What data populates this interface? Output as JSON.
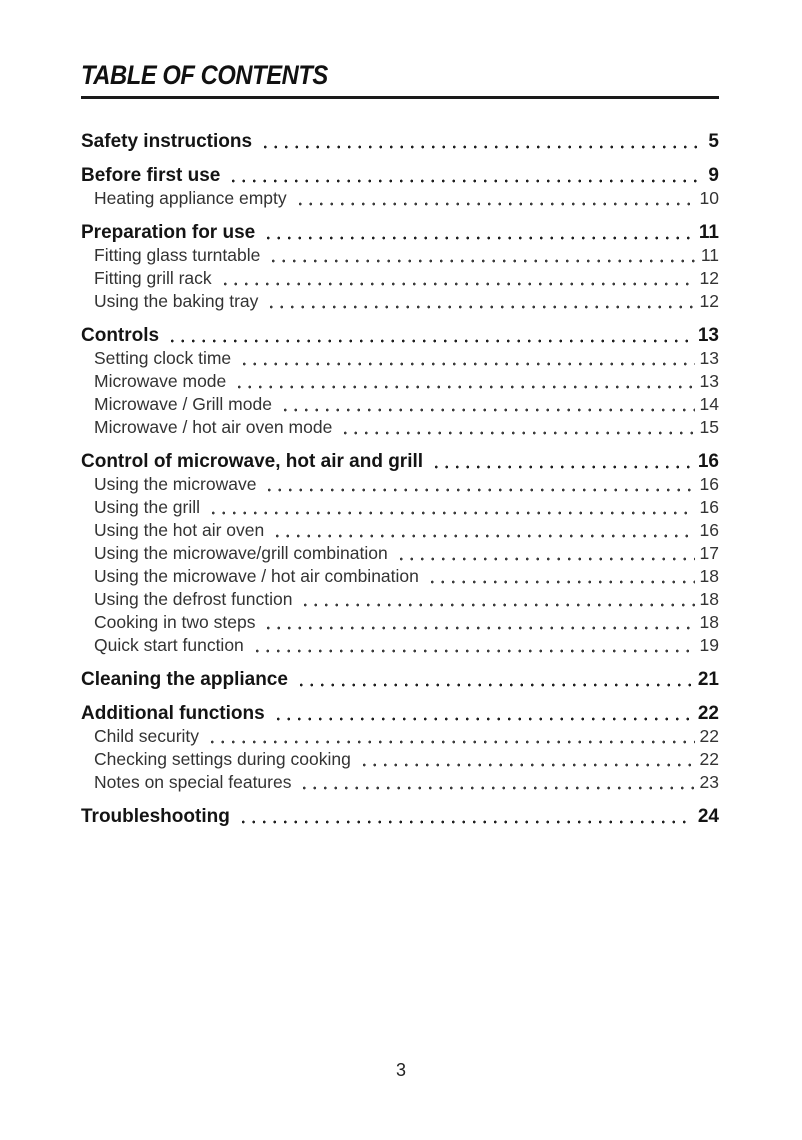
{
  "page": {
    "title": "TABLE OF CONTENTS",
    "footer_page_number": "3"
  },
  "sections": [
    {
      "title": "Safety instructions",
      "page": "5",
      "items": []
    },
    {
      "title": "Before first use",
      "page": "9",
      "items": [
        {
          "label": "Heating appliance empty",
          "page": "10"
        }
      ]
    },
    {
      "title": "Preparation for use",
      "page": "11",
      "items": [
        {
          "label": "Fitting glass turntable",
          "page": "11"
        },
        {
          "label": "Fitting grill rack",
          "page": "12"
        },
        {
          "label": "Using the baking tray",
          "page": "12"
        }
      ]
    },
    {
      "title": "Controls",
      "page": "13",
      "items": [
        {
          "label": "Setting clock time",
          "page": "13"
        },
        {
          "label": "Microwave mode",
          "page": "13"
        },
        {
          "label": "Microwave / Grill mode",
          "page": "14"
        },
        {
          "label": "Microwave / hot air oven mode",
          "page": "15"
        }
      ]
    },
    {
      "title": "Control of microwave, hot air and grill",
      "page": "16",
      "items": [
        {
          "label": "Using the microwave",
          "page": "16"
        },
        {
          "label": "Using the grill",
          "page": "16"
        },
        {
          "label": "Using the hot air oven",
          "page": "16"
        },
        {
          "label": "Using the microwave/grill combination",
          "page": "17"
        },
        {
          "label": "Using the microwave / hot air combination",
          "page": "18"
        },
        {
          "label": "Using the defrost function",
          "page": "18"
        },
        {
          "label": "Cooking in two steps",
          "page": "18"
        },
        {
          "label": "Quick start function",
          "page": "19"
        }
      ]
    },
    {
      "title": "Cleaning the appliance",
      "page": "21",
      "items": []
    },
    {
      "title": "Additional functions",
      "page": "22",
      "items": [
        {
          "label": "Child security",
          "page": "22"
        },
        {
          "label": "Checking settings during cooking",
          "page": "22"
        },
        {
          "label": "Notes on special features",
          "page": "23"
        }
      ]
    },
    {
      "title": "Troubleshooting",
      "page": "24",
      "items": []
    }
  ]
}
